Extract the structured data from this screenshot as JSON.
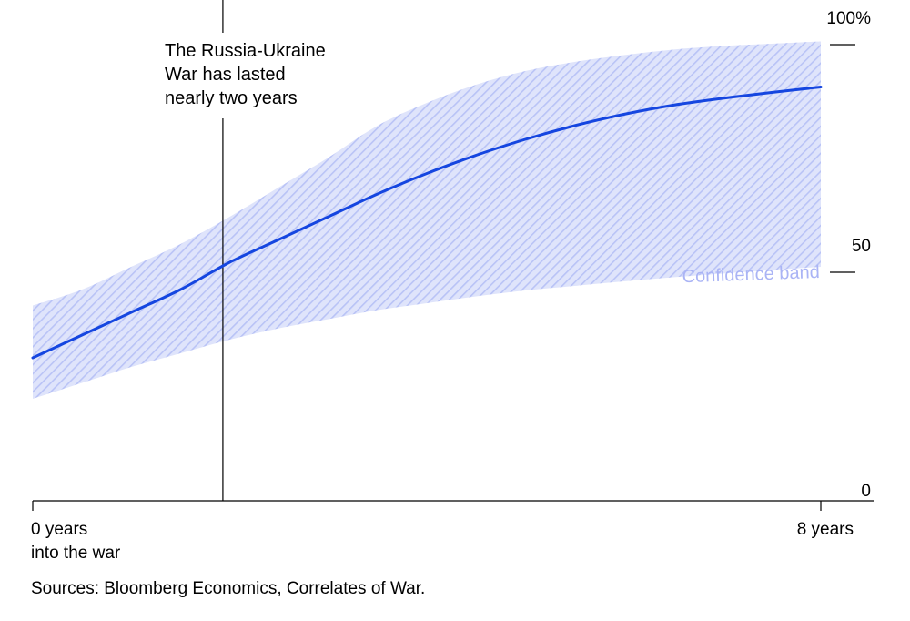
{
  "chart_data": {
    "type": "line",
    "title": "",
    "xlabel": "",
    "ylabel": "",
    "xlim": [
      0,
      8
    ],
    "ylim": [
      0,
      100
    ],
    "y_ticks": [
      {
        "value": 100,
        "label": "100%"
      },
      {
        "value": 50,
        "label": "50"
      },
      {
        "value": 0,
        "label": "0"
      }
    ],
    "x_ticks": [
      {
        "value": 0,
        "label_lines": [
          "0 years",
          "into the war"
        ]
      },
      {
        "value": 8,
        "label_lines": [
          "8 years"
        ]
      }
    ],
    "series": [
      {
        "color": "#1546e0",
        "x": [
          0,
          0.5,
          1,
          1.5,
          2,
          2.5,
          3,
          3.5,
          4,
          4.5,
          5,
          5.5,
          6,
          6.5,
          7,
          7.5,
          8
        ],
        "y": [
          28,
          33,
          38,
          43,
          49,
          54,
          59,
          64,
          68.5,
          72.5,
          76,
          79,
          81.5,
          83.5,
          85,
          86.3,
          87.5
        ],
        "band_upper": [
          39.5,
          43,
          48,
          53,
          59,
          65.5,
          72,
          79,
          84,
          88,
          91,
          93,
          94.5,
          95.7,
          96.5,
          97,
          97.5
        ],
        "band_lower": [
          19,
          22.5,
          26,
          29,
          32,
          34.5,
          36.5,
          38.5,
          40,
          41.5,
          42.8,
          43.8,
          44.8,
          45.7,
          46.5,
          47.3,
          48
        ]
      }
    ],
    "band_label": "Confidence band",
    "band_color": "#aab4f5",
    "annotation": {
      "x": 1.93,
      "text_lines": [
        "The Russia-Ukraine",
        "War has lasted",
        "nearly two years"
      ]
    },
    "grid": false
  },
  "source": "Sources: Bloomberg Economics, Correlates of War."
}
